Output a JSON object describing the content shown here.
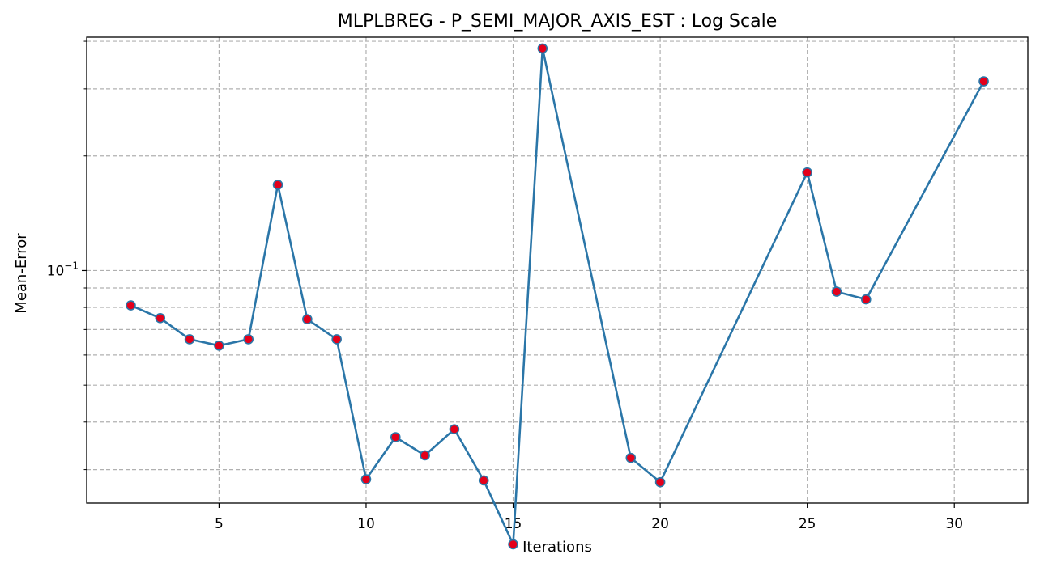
{
  "chart_data": {
    "type": "line",
    "title": "MLPLBREG - P_SEMI_MAJOR_AXIS_EST : Log Scale",
    "xlabel": "Iterations",
    "ylabel": "Mean-Error",
    "yscale": "log",
    "xlim": [
      0.5,
      32.5
    ],
    "ylim": [
      0.0245,
      0.41
    ],
    "x_ticks": [
      5,
      10,
      15,
      20,
      25,
      30
    ],
    "y_major_ticks": [
      {
        "value": 0.1,
        "base": "10",
        "exponent": "−1"
      }
    ],
    "y_minor_grid": [
      0.03,
      0.04,
      0.05,
      0.06,
      0.07,
      0.08,
      0.09,
      0.2,
      0.3,
      0.4
    ],
    "grid": true,
    "series": [
      {
        "x": [
          2,
          3,
          4,
          5,
          6,
          7,
          8,
          9,
          10,
          11,
          12,
          13,
          14,
          15,
          16,
          19,
          20,
          25,
          26,
          27,
          31
        ],
        "y": [
          0.081,
          0.075,
          0.066,
          0.0635,
          0.066,
          0.168,
          0.0745,
          0.066,
          0.0283,
          0.0365,
          0.0327,
          0.0383,
          0.0281,
          0.0191,
          0.383,
          0.0322,
          0.0278,
          0.181,
          0.088,
          0.084,
          0.314
        ]
      }
    ],
    "colors": {
      "line": "#2b76a8",
      "marker_fill": "#e4001b",
      "marker_edge": "#2b76a8"
    }
  }
}
